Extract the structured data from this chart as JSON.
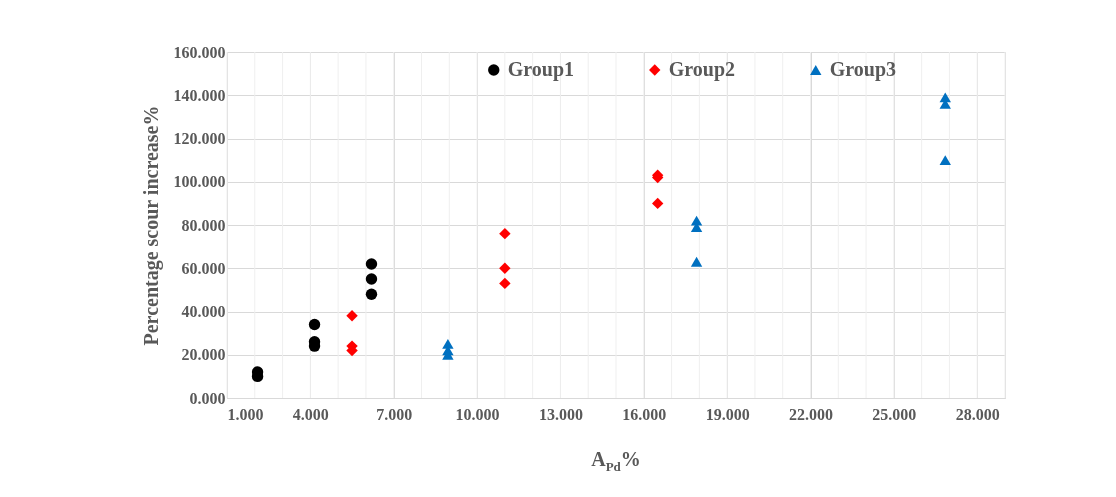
{
  "chart_data": {
    "type": "scatter",
    "xlabel": "A$_{Pd}$%",
    "ylabel": "Percentage scour increase%",
    "xlim": [
      1,
      29
    ],
    "ylim": [
      0,
      160
    ],
    "xticks": [
      {
        "value": 1,
        "label": "1.000"
      },
      {
        "value": 4,
        "label": "4.000"
      },
      {
        "value": 7,
        "label": "7.000"
      },
      {
        "value": 10,
        "label": "10.000"
      },
      {
        "value": 13,
        "label": "13.000"
      },
      {
        "value": 16,
        "label": "16.000"
      },
      {
        "value": 19,
        "label": "19.000"
      },
      {
        "value": 22,
        "label": "22.000"
      },
      {
        "value": 25,
        "label": "25.000"
      },
      {
        "value": 28,
        "label": "28.000"
      }
    ],
    "yticks": [
      {
        "value": 0,
        "label": "0.000"
      },
      {
        "value": 20,
        "label": "20.000"
      },
      {
        "value": 40,
        "label": "40.000"
      },
      {
        "value": 60,
        "label": "60.000"
      },
      {
        "value": 80,
        "label": "80.000"
      },
      {
        "value": 100,
        "label": "100.000"
      },
      {
        "value": 120,
        "label": "120.000"
      },
      {
        "value": 140,
        "label": "140.000"
      },
      {
        "value": 160,
        "label": "160.000"
      }
    ],
    "grid": true,
    "legend": "top",
    "series": [
      {
        "name": "Group1",
        "color": "#000000",
        "marker": "circle",
        "x": [
          2.1,
          2.1,
          4.15,
          4.15,
          4.15,
          6.2,
          6.2,
          6.2
        ],
        "values": [
          12,
          10,
          34,
          26,
          24,
          62,
          55,
          48
        ]
      },
      {
        "name": "Group2",
        "color": "#ff0000",
        "marker": "diamond",
        "x": [
          5.5,
          5.5,
          5.5,
          11,
          11,
          11,
          16.5,
          16.5,
          16.5
        ],
        "values": [
          38,
          24,
          22,
          76,
          60,
          53,
          103,
          102,
          90
        ]
      },
      {
        "name": "Group3",
        "color": "#0070c0",
        "marker": "triangle",
        "x": [
          8.95,
          8.95,
          8.95,
          17.9,
          17.9,
          17.9,
          26.85,
          26.85,
          26.85
        ],
        "values": [
          25,
          22,
          20,
          82,
          79,
          63,
          139,
          136,
          110
        ]
      }
    ]
  }
}
